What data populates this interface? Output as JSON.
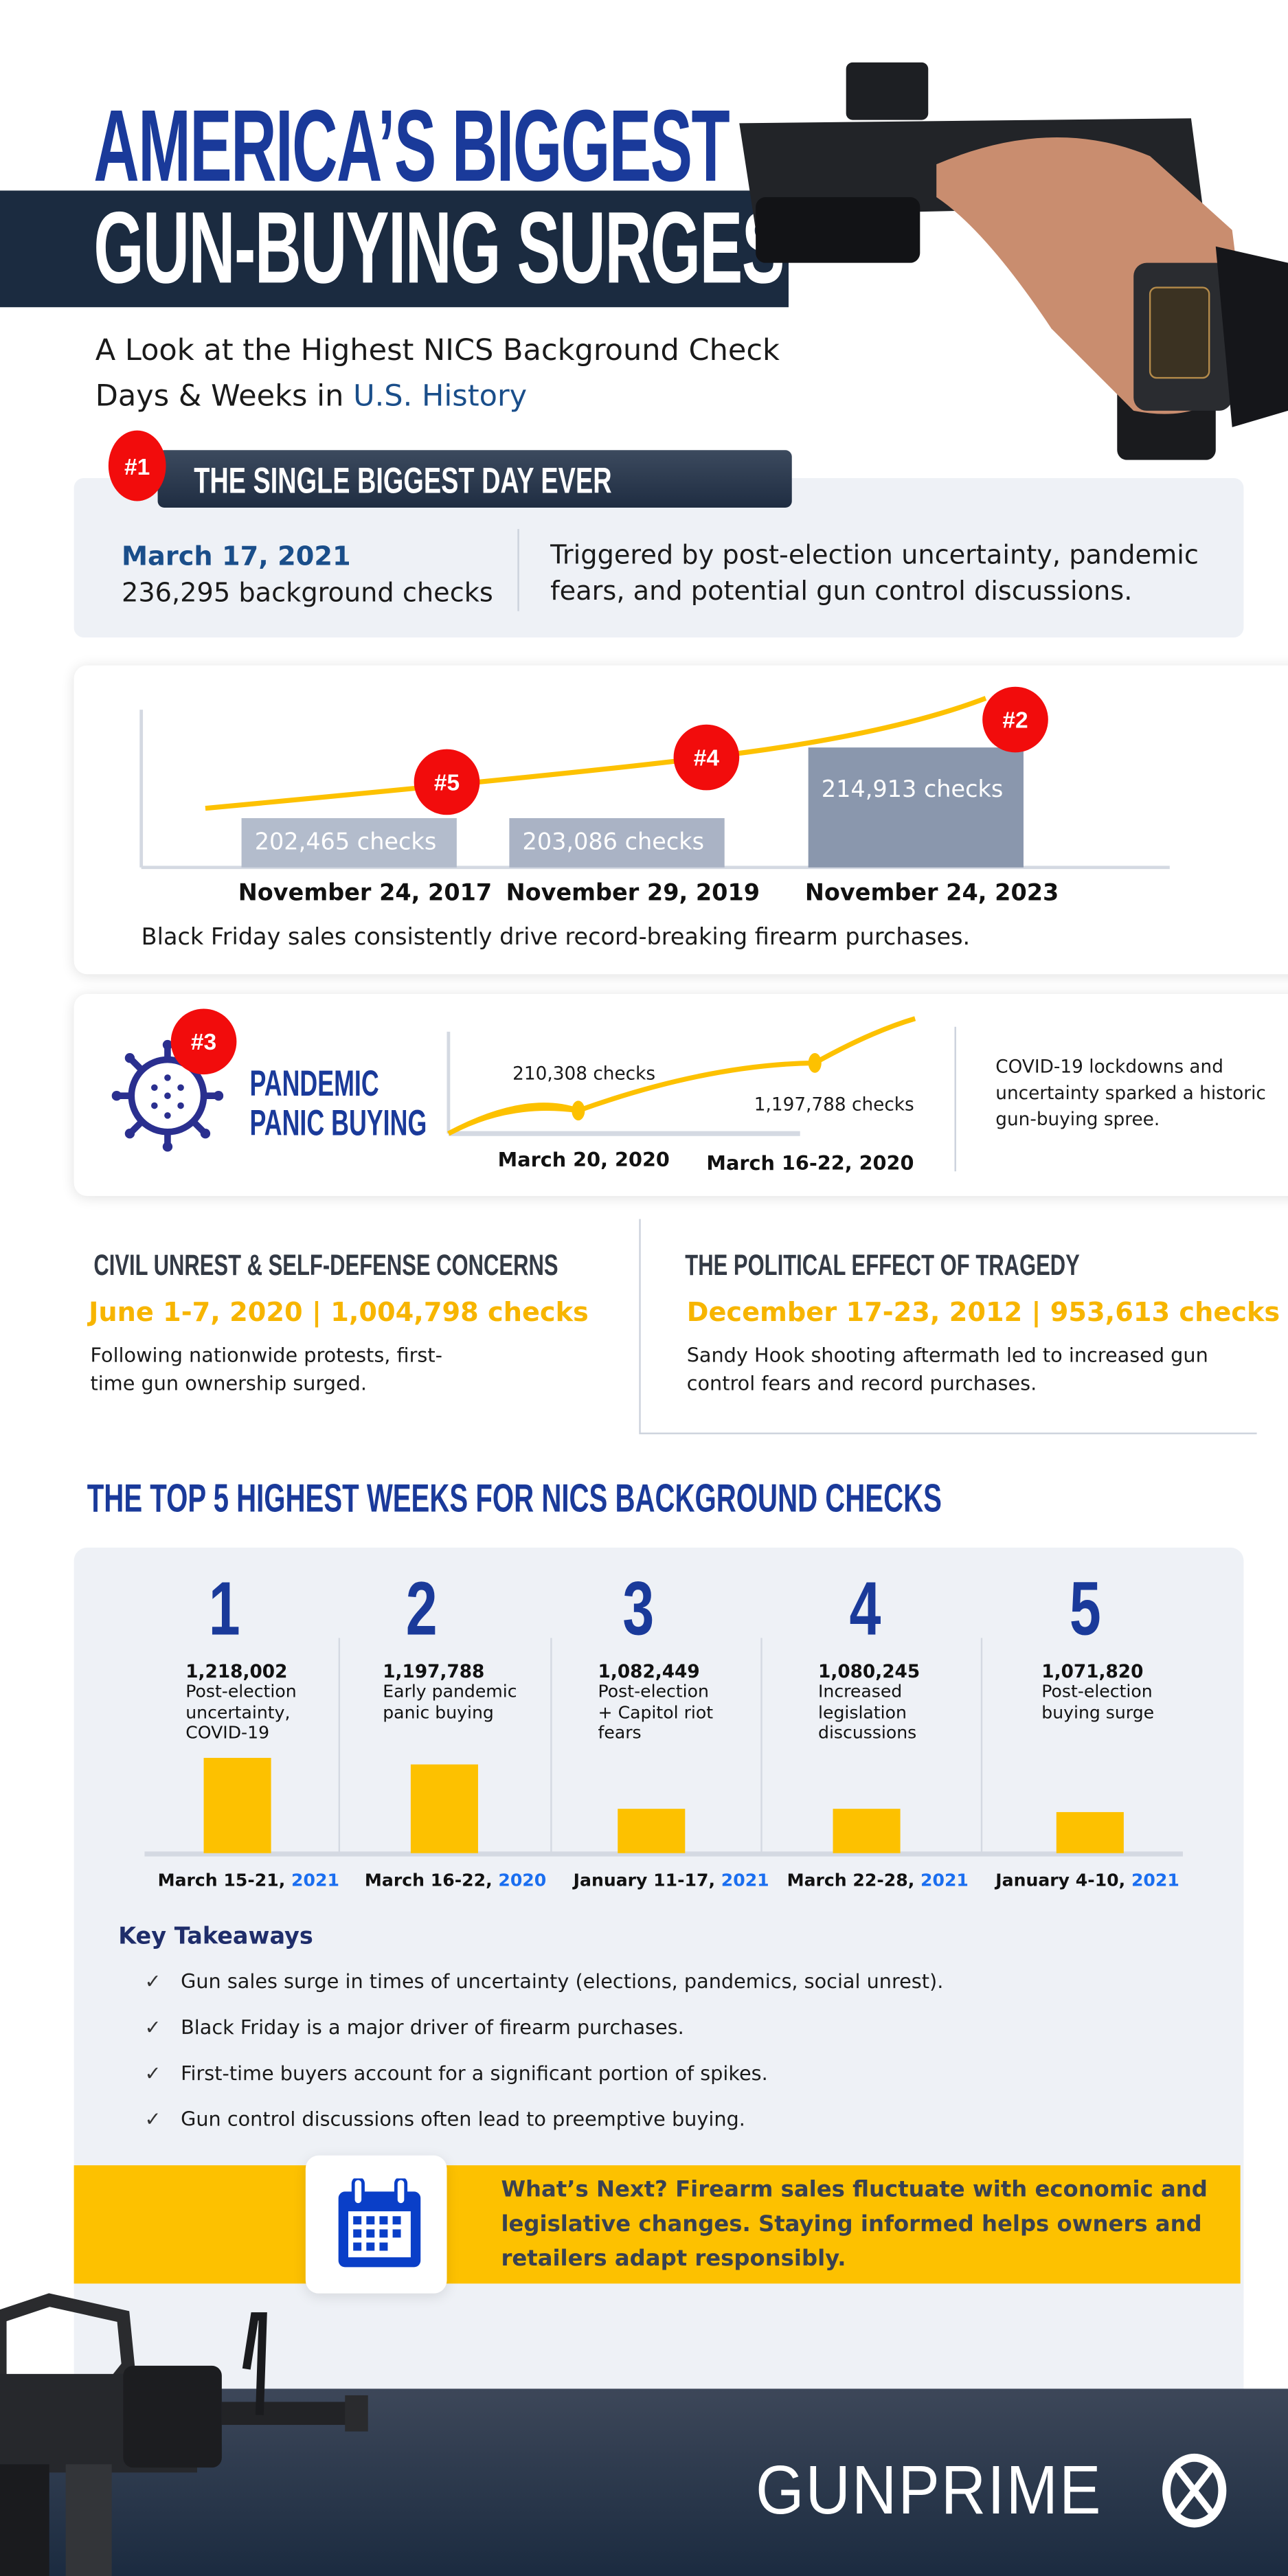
{
  "header": {
    "title_line1": "AMERICA’S BIGGEST",
    "title_line2": "GUN-BUYING SURGES",
    "subtitle_line1": "A Look at the Highest NICS Background Check",
    "subtitle_line2_prefix": "Days & Weeks in ",
    "subtitle_line2_highlight": "U.S. History"
  },
  "biggest_day": {
    "badge": "#1",
    "heading": "THE SINGLE BIGGEST DAY EVER",
    "date": "March 17, 2021",
    "checks": "236,295 background checks",
    "description_line1": "Triggered by post-election uncertainty, pandemic",
    "description_line2": "fears, and potential gun control discussions."
  },
  "black_friday": {
    "bars": [
      {
        "badge": "#5",
        "label": "202,465  checks",
        "date": "November 24, 2017",
        "value": 202465
      },
      {
        "badge": "#4",
        "label": "203,086 checks",
        "date": "November 29, 2019",
        "value": 203086
      },
      {
        "badge": "#2",
        "label": "214,913 checks",
        "date": "November 24, 2023",
        "value": 214913
      }
    ],
    "caption": "Black Friday sales consistently drive record-breaking firearm purchases."
  },
  "pandemic": {
    "badge": "#3",
    "title_line1": "PANDEMIC",
    "title_line2": "PANIC BUYING",
    "point1_label": "210,308 checks",
    "point2_label": "1,197,788 checks",
    "date1": "March 20, 2020",
    "date2": "March 16-22, 2020",
    "description_line1": "COVID-19 lockdowns and",
    "description_line2": "uncertainty sparked a historic",
    "description_line3": "gun-buying spree."
  },
  "civil_unrest": {
    "heading": "CIVIL UNREST & SELF-DEFENSE CONCERNS",
    "stat": "June 1-7, 2020 | 1,004,798 checks",
    "text_line1": "Following nationwide protests, first-",
    "text_line2": "time gun ownership surged."
  },
  "political": {
    "heading": "THE POLITICAL EFFECT OF TRAGEDY",
    "stat": "December 17-23, 2012 | 953,613 checks",
    "text_line1": "Sandy Hook shooting aftermath led to increased gun",
    "text_line2": "control fears and record purchases."
  },
  "top5": {
    "heading": "THE TOP 5 HIGHEST WEEKS FOR NICS BACKGROUND CHECKS",
    "items": [
      {
        "rank": "1",
        "value": "1,218,002",
        "desc": [
          "Post-election",
          "uncertainty,",
          "COVID-19"
        ],
        "date": "March 15-21, ",
        "year": "2021"
      },
      {
        "rank": "2",
        "value": "1,197,788",
        "desc": [
          "Early pandemic",
          "panic buying"
        ],
        "date": "March 16-22, ",
        "year": "2020"
      },
      {
        "rank": "3",
        "value": "1,082,449",
        "desc": [
          "Post-election",
          "+ Capitol riot",
          "fears"
        ],
        "date": "January 11-17, ",
        "year": "2021"
      },
      {
        "rank": "4",
        "value": "1,080,245",
        "desc": [
          "Increased",
          "legislation",
          "discussions"
        ],
        "date": "March 22-28, ",
        "year": "2021"
      },
      {
        "rank": "5",
        "value": "1,071,820",
        "desc": [
          "Post-election",
          "buying surge"
        ],
        "date": "January 4-10, ",
        "year": "2021"
      }
    ]
  },
  "takeaways": {
    "heading": "Key Takeaways",
    "items": [
      "Gun sales surge in times of uncertainty (elections, pandemics, social unrest).",
      "Black Friday is a major driver of firearm purchases.",
      "First-time buyers account for a significant portion of spikes.",
      "Gun control discussions often lead to preemptive buying."
    ]
  },
  "whats_next": {
    "line1": "What’s Next? Firearm sales fluctuate with economic and",
    "line2": "legislative changes. Staying informed helps owners and",
    "line3": "retailers adapt responsibly."
  },
  "footer": {
    "logo": "GUNPRIME"
  },
  "colors": {
    "navy": "#1a3a9a",
    "dark_band": "#1b2b40",
    "yellow": "#fdc100",
    "red": "#f20c0c",
    "light_bg": "#eef1f6",
    "year_blue": "#1a6ef0"
  },
  "chart_data": {
    "type": "bar",
    "title": "THE TOP 5 HIGHEST WEEKS FOR NICS BACKGROUND CHECKS",
    "categories": [
      "March 15-21, 2021",
      "March 16-22, 2020",
      "January 11-17, 2021",
      "March 22-28, 2021",
      "January 4-10, 2021"
    ],
    "values": [
      1218002,
      1197788,
      1082449,
      1080245,
      1071820
    ]
  }
}
